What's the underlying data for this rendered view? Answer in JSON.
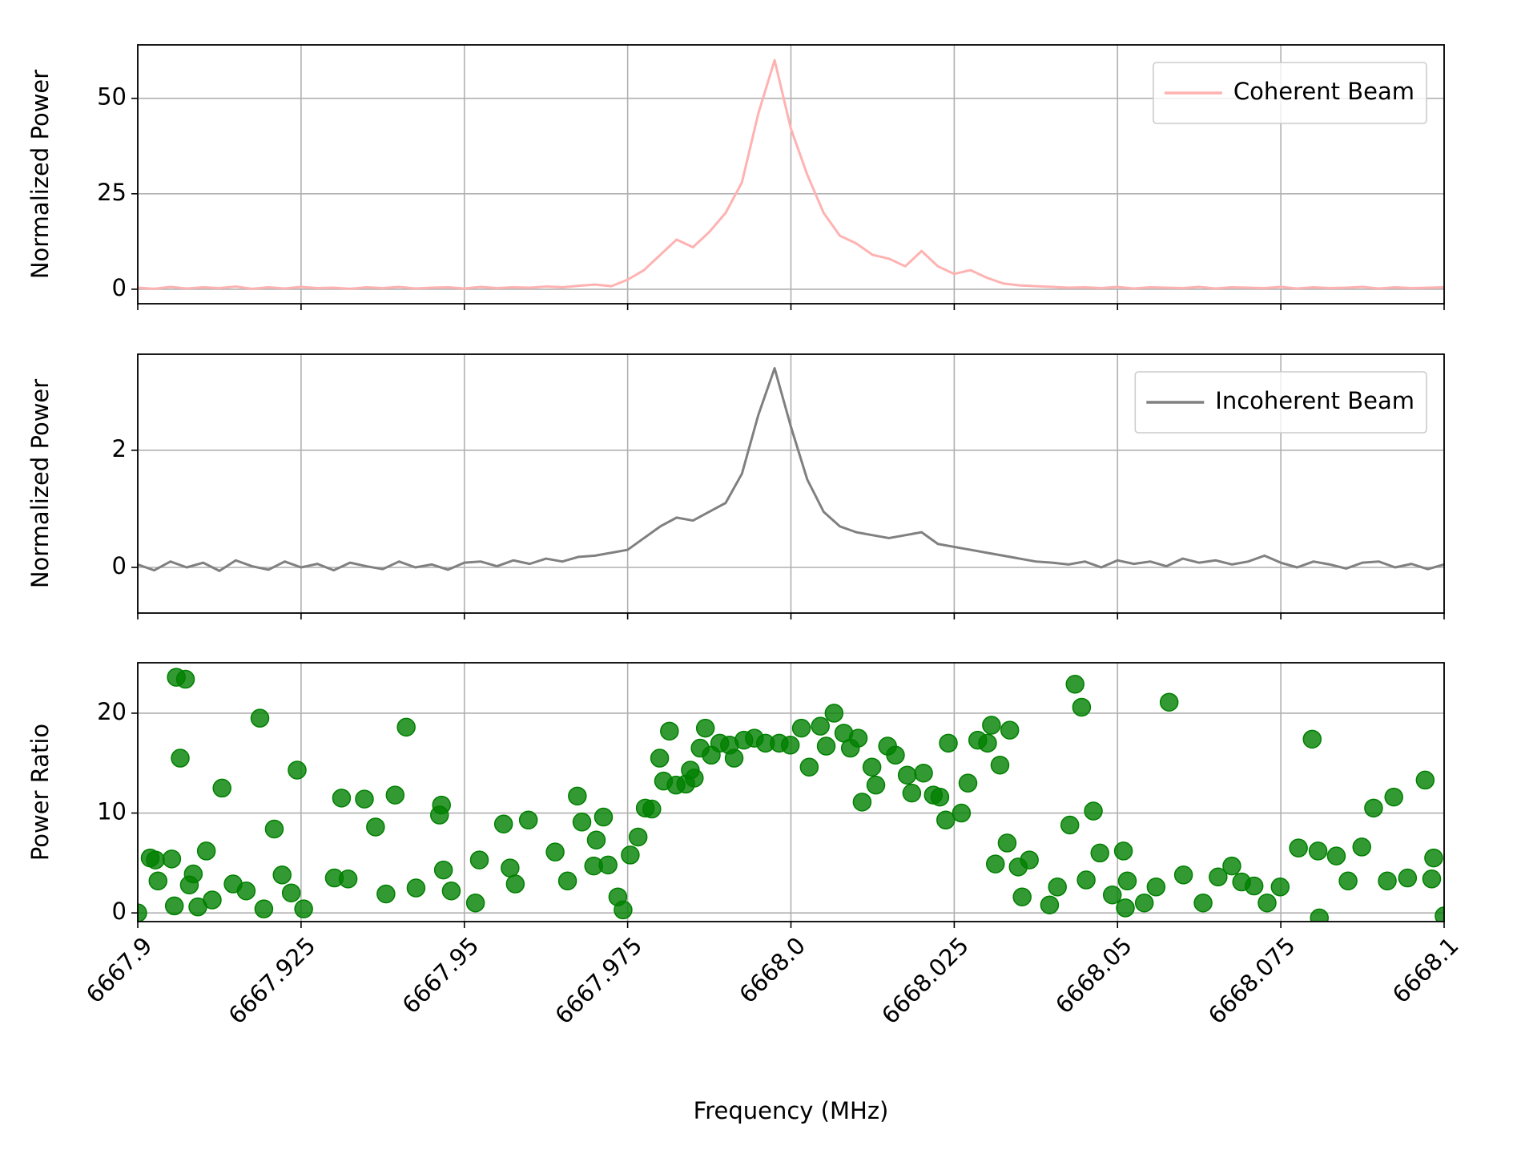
{
  "chart_data": [
    {
      "type": "line",
      "ylabel": "Normalized Power",
      "x": [
        6667.9,
        6667.9025,
        6667.905,
        6667.9075,
        6667.91,
        6667.9125,
        6667.915,
        6667.9175,
        6667.92,
        6667.9225,
        6667.925,
        6667.9275,
        6667.93,
        6667.9325,
        6667.935,
        6667.9375,
        6667.94,
        6667.9425,
        6667.945,
        6667.9475,
        6667.95,
        6667.9525,
        6667.955,
        6667.9575,
        6667.96,
        6667.9625,
        6667.965,
        6667.9675,
        6667.97,
        6667.9725,
        6667.975,
        6667.9775,
        6667.98,
        6667.9825,
        6667.985,
        6667.9875,
        6667.99,
        6667.9925,
        6667.995,
        6667.9975,
        6668,
        6668.0025,
        6668.005,
        6668.0075,
        6668.01,
        6668.0125,
        6668.015,
        6668.0175,
        6668.02,
        6668.0225,
        6668.025,
        6668.0275,
        6668.03,
        6668.0325,
        6668.035,
        6668.0375,
        6668.04,
        6668.0425,
        6668.045,
        6668.0475,
        6668.05,
        6668.0525,
        6668.055,
        6668.0575,
        6668.06,
        6668.0625,
        6668.065,
        6668.0675,
        6668.07,
        6668.0725,
        6668.075,
        6668.0775,
        6668.08,
        6668.0825,
        6668.085,
        6668.0875,
        6668.09,
        6668.0925,
        6668.095,
        6668.0975,
        6668.1
      ],
      "series": [
        {
          "name": "Coherent Beam",
          "color": "#ffb2b2",
          "values": [
            0.4,
            0.1,
            0.6,
            0.2,
            0.5,
            0.3,
            0.7,
            0.1,
            0.5,
            0.2,
            0.6,
            0.3,
            0.4,
            0.1,
            0.5,
            0.3,
            0.6,
            0.2,
            0.4,
            0.5,
            0.2,
            0.6,
            0.3,
            0.5,
            0.4,
            0.7,
            0.5,
            0.9,
            1.2,
            0.8,
            2.5,
            5,
            9,
            13,
            11,
            15,
            20,
            28,
            46,
            60,
            42,
            30,
            20,
            14,
            12,
            9,
            8,
            6,
            10,
            6,
            4,
            5,
            3,
            1.5,
            1,
            0.8,
            0.6,
            0.4,
            0.5,
            0.3,
            0.6,
            0.2,
            0.5,
            0.4,
            0.3,
            0.6,
            0.2,
            0.5,
            0.4,
            0.3,
            0.6,
            0.2,
            0.5,
            0.3,
            0.4,
            0.6,
            0.2,
            0.5,
            0.3,
            0.4,
            0.5
          ]
        }
      ],
      "xlim": [
        6667.9,
        6668.1
      ],
      "xticks": [
        6667.9,
        6667.925,
        6667.95,
        6667.975,
        6668,
        6668.025,
        6668.05,
        6668.075,
        6668.1
      ],
      "ylim": [
        -3.8,
        64
      ],
      "yticks": [
        0,
        25,
        50
      ],
      "grid": true,
      "legend": "upper right"
    },
    {
      "type": "line",
      "ylabel": "Normalized Power",
      "x": [
        6667.9,
        6667.9025,
        6667.905,
        6667.9075,
        6667.91,
        6667.9125,
        6667.915,
        6667.9175,
        6667.92,
        6667.9225,
        6667.925,
        6667.9275,
        6667.93,
        6667.9325,
        6667.935,
        6667.9375,
        6667.94,
        6667.9425,
        6667.945,
        6667.9475,
        6667.95,
        6667.9525,
        6667.955,
        6667.9575,
        6667.96,
        6667.9625,
        6667.965,
        6667.9675,
        6667.97,
        6667.9725,
        6667.975,
        6667.9775,
        6667.98,
        6667.9825,
        6667.985,
        6667.9875,
        6667.99,
        6667.9925,
        6667.995,
        6667.9975,
        6668,
        6668.0025,
        6668.005,
        6668.0075,
        6668.01,
        6668.0125,
        6668.015,
        6668.0175,
        6668.02,
        6668.0225,
        6668.025,
        6668.0275,
        6668.03,
        6668.0325,
        6668.035,
        6668.0375,
        6668.04,
        6668.0425,
        6668.045,
        6668.0475,
        6668.05,
        6668.0525,
        6668.055,
        6668.0575,
        6668.06,
        6668.0625,
        6668.065,
        6668.0675,
        6668.07,
        6668.0725,
        6668.075,
        6668.0775,
        6668.08,
        6668.0825,
        6668.085,
        6668.0875,
        6668.09,
        6668.0925,
        6668.095,
        6668.0975,
        6668.1
      ],
      "series": [
        {
          "name": "Incoherent Beam",
          "color": "#808080",
          "values": [
            0.05,
            -0.05,
            0.1,
            0.0,
            0.08,
            -0.06,
            0.12,
            0.02,
            -0.04,
            0.1,
            0.0,
            0.06,
            -0.05,
            0.08,
            0.02,
            -0.03,
            0.1,
            0.0,
            0.05,
            -0.04,
            0.08,
            0.1,
            0.02,
            0.12,
            0.06,
            0.15,
            0.1,
            0.18,
            0.2,
            0.25,
            0.3,
            0.5,
            0.7,
            0.85,
            0.8,
            0.95,
            1.1,
            1.6,
            2.6,
            3.4,
            2.4,
            1.5,
            0.95,
            0.7,
            0.6,
            0.55,
            0.5,
            0.55,
            0.6,
            0.4,
            0.35,
            0.3,
            0.25,
            0.2,
            0.15,
            0.1,
            0.08,
            0.05,
            0.1,
            0.0,
            0.12,
            0.06,
            0.1,
            0.02,
            0.15,
            0.08,
            0.12,
            0.05,
            0.1,
            0.2,
            0.08,
            0.0,
            0.1,
            0.05,
            -0.02,
            0.08,
            0.1,
            0.0,
            0.06,
            -0.03,
            0.05
          ]
        }
      ],
      "xlim": [
        6667.9,
        6668.1
      ],
      "xticks": [
        6667.9,
        6667.925,
        6667.95,
        6667.975,
        6668,
        6668.025,
        6668.05,
        6668.075,
        6668.1
      ],
      "ylim": [
        -0.78,
        3.64
      ],
      "yticks": [
        0,
        2
      ],
      "grid": true,
      "legend": "upper right"
    },
    {
      "type": "scatter",
      "ylabel": "Power Ratio",
      "xlabel": "Frequency (MHz)",
      "x": [
        6667.9,
        6667.9019,
        6667.9027,
        6667.9031,
        6667.9052,
        6667.9056,
        6667.9059,
        6667.9065,
        6667.9073,
        6667.9079,
        6667.9085,
        6667.9092,
        6667.9105,
        6667.9114,
        6667.9129,
        6667.9146,
        6667.9166,
        6667.9187,
        6667.9193,
        6667.9209,
        6667.9221,
        6667.9235,
        6667.9244,
        6667.9254,
        6667.9301,
        6667.9312,
        6667.9322,
        6667.9347,
        6667.9364,
        6667.938,
        6667.9394,
        6667.9411,
        6667.9426,
        6667.9462,
        6667.9465,
        6667.9468,
        6667.948,
        6667.9517,
        6667.9523,
        6667.956,
        6667.957,
        6667.9578,
        6667.9598,
        6667.9639,
        6667.9658,
        6667.9673,
        6667.968,
        6667.9698,
        6667.9702,
        6667.9713,
        6667.972,
        6667.9735,
        6667.9743,
        6667.9754,
        6667.9766,
        6667.9777,
        6667.9787,
        6667.9799,
        6667.9805,
        6667.9814,
        6667.9824,
        6667.9839,
        6667.9846,
        6667.9852,
        6667.9861,
        6667.9869,
        6667.9878,
        6667.9891,
        6667.9906,
        6667.9913,
        6667.9928,
        6667.9944,
        6667.9961,
        6667.9982,
        6667.9999,
        6668.0016,
        6668.0028,
        6668.0045,
        6668.0054,
        6668.0066,
        6668.0081,
        6668.0091,
        6668.0103,
        6668.0109,
        6668.0124,
        6668.013,
        6668.0148,
        6668.016,
        6668.0178,
        6668.0185,
        6668.0203,
        6668.0218,
        6668.0228,
        6668.0237,
        6668.0241,
        6668.0261,
        6668.0271,
        6668.0286,
        6668.0301,
        6668.0307,
        6668.0313,
        6668.032,
        6668.0331,
        6668.0335,
        6668.0348,
        6668.0354,
        6668.0365,
        6668.0396,
        6668.0408,
        6668.0427,
        6668.0435,
        6668.0445,
        6668.0452,
        6668.0463,
        6668.0473,
        6668.0492,
        6668.0509,
        6668.0512,
        6668.0515,
        6668.0541,
        6668.0559,
        6668.0579,
        6668.0601,
        6668.0631,
        6668.0654,
        6668.0675,
        6668.069,
        6668.0709,
        6668.0729,
        6668.0749,
        6668.0777,
        6668.0798,
        6668.0807,
        6668.0809,
        6668.0835,
        6668.0853,
        6668.0874,
        6668.0892,
        6668.0913,
        6668.0923,
        6668.0944,
        6668.0971,
        6668.0981,
        6668.0984,
        6668.1
      ],
      "series": [
        {
          "color": "#008000",
          "values": [
            0,
            5.5,
            5.3,
            3.2,
            5.4,
            0.7,
            23.6,
            15.5,
            23.4,
            2.8,
            3.9,
            0.6,
            6.2,
            1.3,
            12.5,
            2.9,
            2.2,
            19.5,
            0.4,
            8.4,
            3.8,
            2.0,
            14.3,
            0.4,
            3.5,
            11.5,
            3.4,
            11.4,
            8.6,
            1.9,
            11.8,
            18.6,
            2.5,
            9.8,
            10.8,
            4.3,
            2.2,
            1.0,
            5.3,
            8.9,
            4.5,
            2.9,
            9.3,
            6.1,
            3.2,
            11.7,
            9.1,
            4.7,
            7.3,
            9.6,
            4.8,
            1.6,
            0.3,
            5.8,
            7.6,
            10.5,
            10.4,
            15.5,
            13.2,
            18.2,
            12.8,
            12.9,
            14.3,
            13.5,
            16.5,
            18.5,
            15.8,
            17.0,
            16.8,
            15.5,
            17.3,
            17.5,
            17.0,
            17.0,
            16.8,
            18.5,
            14.6,
            18.7,
            16.7,
            20.0,
            18.0,
            16.5,
            17.5,
            11.1,
            14.6,
            12.8,
            16.7,
            15.8,
            13.8,
            12.0,
            14.0,
            11.8,
            11.6,
            9.3,
            17.0,
            10.0,
            13.0,
            17.3,
            17.0,
            18.8,
            4.9,
            14.8,
            7.0,
            18.3,
            4.6,
            1.6,
            5.3,
            0.8,
            2.6,
            8.8,
            22.9,
            20.6,
            3.3,
            10.2,
            6.0,
            1.8,
            6.2,
            0.5,
            3.2,
            1.0,
            2.6,
            21.1,
            3.8,
            1.0,
            3.6,
            4.7,
            3.1,
            2.7,
            1.0,
            2.6,
            6.5,
            17.4,
            6.2,
            -0.5,
            5.7,
            3.2,
            6.6,
            10.5,
            3.2,
            11.6,
            3.5,
            13.3,
            3.4,
            5.5,
            -0.3
          ]
        }
      ],
      "xlim": [
        6667.9,
        6668.1
      ],
      "xticks": [
        6667.9,
        6667.925,
        6667.95,
        6667.975,
        {
          "value": 6668,
          "label": "6668.0"
        },
        6668.025,
        6668.05,
        6668.075,
        6668.1
      ],
      "ylim": [
        -0.87,
        25.05
      ],
      "yticks": [
        0,
        10,
        20
      ],
      "grid": true
    }
  ]
}
